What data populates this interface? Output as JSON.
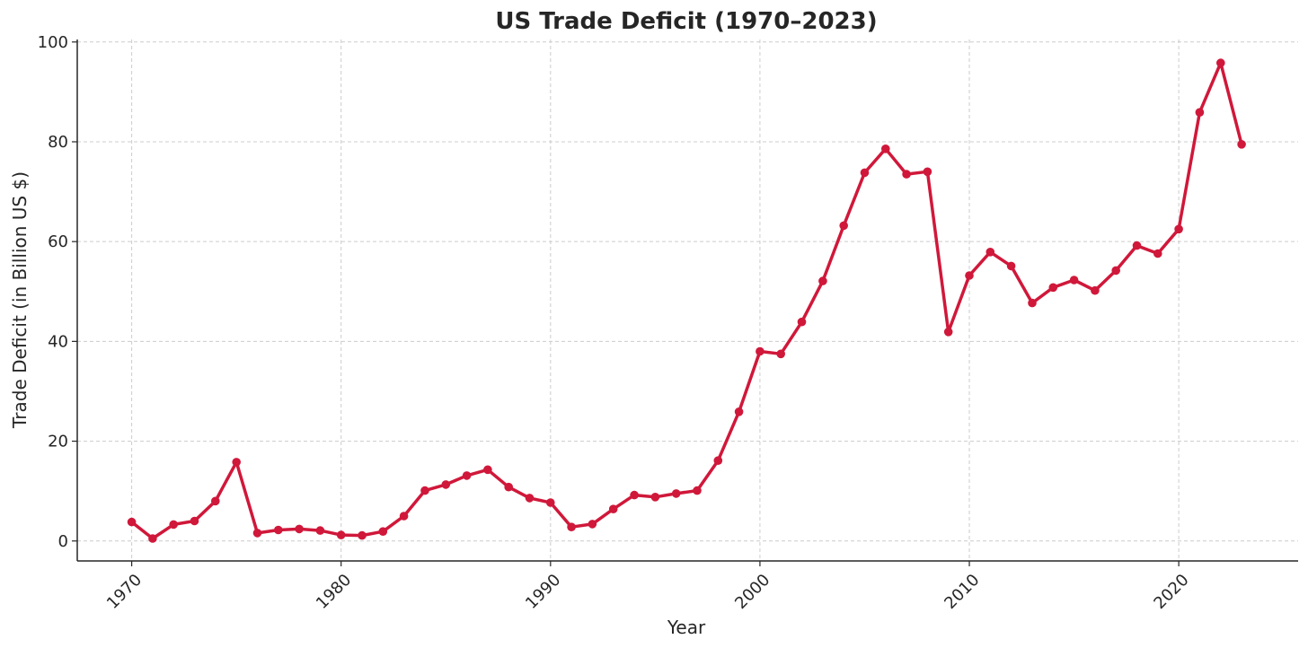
{
  "chart_data": {
    "type": "line",
    "title": "US Trade Deficit (1970–2023)",
    "xlabel": "Year",
    "ylabel": "Trade Deficit (in Billion US $)",
    "xlim": [
      1967.4,
      2025.7
    ],
    "ylim": [
      -4,
      100.5
    ],
    "xticks": [
      1970,
      1980,
      1990,
      2000,
      2010,
      2020
    ],
    "yticks": [
      0,
      20,
      40,
      60,
      80,
      100
    ],
    "grid": true,
    "line_color": "#d0183a",
    "x": [
      1970,
      1971,
      1972,
      1973,
      1974,
      1975,
      1976,
      1977,
      1978,
      1979,
      1980,
      1981,
      1982,
      1983,
      1984,
      1985,
      1986,
      1987,
      1988,
      1989,
      1990,
      1991,
      1992,
      1993,
      1994,
      1995,
      1996,
      1997,
      1998,
      1999,
      2000,
      2001,
      2002,
      2003,
      2004,
      2005,
      2006,
      2007,
      2008,
      2009,
      2010,
      2011,
      2012,
      2013,
      2014,
      2015,
      2016,
      2017,
      2018,
      2019,
      2020,
      2021,
      2022,
      2023
    ],
    "values": [
      3.8,
      0.5,
      3.3,
      4.0,
      8.0,
      15.8,
      1.6,
      2.2,
      2.4,
      2.1,
      1.2,
      1.1,
      1.9,
      5.0,
      10.1,
      11.3,
      13.1,
      14.3,
      10.8,
      8.6,
      7.7,
      2.8,
      3.4,
      6.4,
      9.2,
      8.8,
      9.5,
      10.1,
      16.1,
      25.9,
      38.0,
      37.5,
      43.9,
      52.1,
      63.2,
      73.8,
      78.6,
      73.5,
      74.0,
      41.9,
      53.2,
      57.9,
      55.1,
      47.7,
      50.8,
      52.3,
      50.2,
      54.2,
      59.2,
      57.6,
      62.5,
      85.9,
      95.8,
      79.5
    ]
  }
}
